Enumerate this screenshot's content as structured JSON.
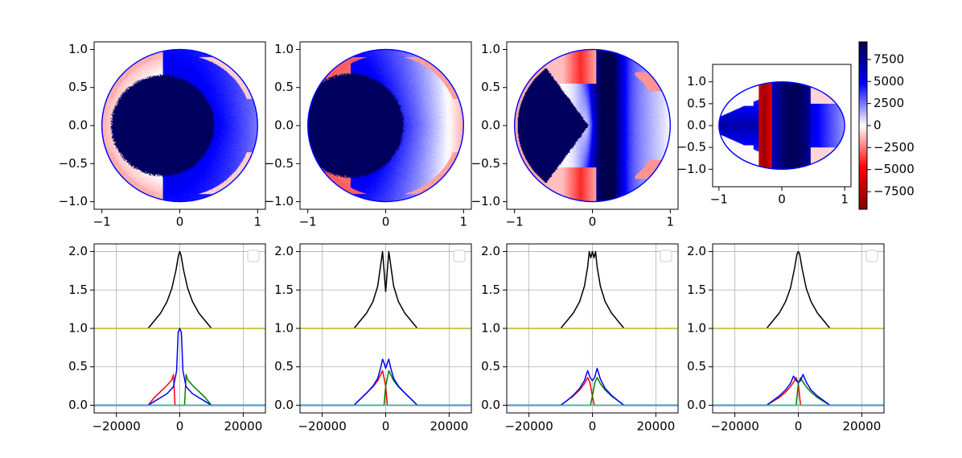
{
  "figure": {
    "colorbar": {
      "cmap": "seismic-reversed",
      "vmin": -9500,
      "vmax": 9500,
      "ticks": [
        7500,
        5000,
        2500,
        0,
        -2500,
        -5000,
        -7500
      ],
      "tick_labels": [
        "7500",
        "5000",
        "2500",
        "0",
        "−2500",
        "−5000",
        "−7500"
      ]
    }
  },
  "chart_data": [
    {
      "type": "heatmap",
      "panel": "disk-1",
      "xticks": [
        -1,
        0,
        1
      ],
      "xtick_labels": [
        "−1",
        "0",
        "1"
      ],
      "yticks": [
        1.0,
        0.5,
        0.0,
        -0.5,
        -1.0
      ],
      "ytick_labels": [
        "1.0",
        "0.5",
        "0.0",
        "−0.5",
        "−1.0"
      ],
      "xlim": [
        -1.1,
        1.1
      ],
      "ylim": [
        -1.1,
        1.1
      ],
      "pattern": "crescent",
      "inner_disk": {
        "cx": -0.22,
        "cy": 0.0,
        "r": 0.66,
        "value": 9000
      },
      "outer_value_range": [
        2500,
        7000
      ],
      "edge_value": -1500
    },
    {
      "type": "heatmap",
      "panel": "disk-2",
      "xticks": [
        -1,
        0,
        1
      ],
      "xtick_labels": [
        "−1",
        "0",
        "1"
      ],
      "yticks": [
        1.0,
        0.5,
        0.0,
        -0.5,
        -1.0
      ],
      "ytick_labels": [
        "1.0",
        "0.5",
        "0.0",
        "−0.5",
        "−1.0"
      ],
      "xlim": [
        -1.1,
        1.1
      ],
      "ylim": [
        -1.1,
        1.1
      ],
      "pattern": "crescent",
      "inner_disk": {
        "cx": -0.45,
        "cy": 0.0,
        "r": 0.68,
        "value": 9000
      },
      "outer_value_range": [
        -1500,
        7000
      ],
      "edge_value": -3000
    },
    {
      "type": "heatmap",
      "panel": "disk-3",
      "xticks": [
        -1,
        0,
        1
      ],
      "xtick_labels": [
        "−1",
        "0",
        "1"
      ],
      "yticks": [
        1.0,
        0.5,
        0.0,
        -0.5,
        -1.0
      ],
      "ytick_labels": [
        "1.0",
        "0.5",
        "0.0",
        "−0.5",
        "−1.0"
      ],
      "xlim": [
        -1.1,
        1.1
      ],
      "ylim": [
        -1.1,
        1.1
      ],
      "pattern": "wedge",
      "wedge_apex": -0.05,
      "band_peak_x": 0.12,
      "edge_value": -4000
    },
    {
      "type": "heatmap",
      "panel": "disk-4",
      "xticks": [
        -1,
        0,
        1
      ],
      "xtick_labels": [
        "−1",
        "0",
        "1"
      ],
      "yticks": [
        1.0,
        0.5,
        0.0,
        -0.5,
        -1.0
      ],
      "ytick_labels": [
        "1.0",
        "0.5",
        "0.0",
        "−0.5",
        "−1.0"
      ],
      "xlim": [
        -1.1,
        1.1
      ],
      "ylim": [
        -1.4,
        1.4
      ],
      "pattern": "bands",
      "red_stripe_x": -0.28,
      "dark_band_x": 0.18
    },
    {
      "type": "line",
      "panel": "profile-1",
      "xlim": [
        -27000,
        27000
      ],
      "ylim": [
        -0.1,
        2.1
      ],
      "xticks": [
        -20000,
        0,
        20000
      ],
      "xtick_labels": [
        "−20000",
        "0",
        "20000"
      ],
      "yticks": [
        0.0,
        0.5,
        1.0,
        1.5,
        2.0
      ],
      "ytick_labels": [
        "0.0",
        "0.5",
        "1.0",
        "1.5",
        "2.0"
      ],
      "grid": true,
      "legend_location": "upper right",
      "series": [
        {
          "color": "#000000",
          "x": [
            -10000,
            -8000,
            -6000,
            -4000,
            -2500,
            -1200,
            -400,
            0,
            400,
            1200,
            2500,
            4000,
            6000,
            8000,
            10000
          ],
          "y": [
            1.0,
            1.1,
            1.2,
            1.35,
            1.52,
            1.76,
            1.95,
            2.0,
            1.95,
            1.76,
            1.52,
            1.35,
            1.2,
            1.1,
            1.0
          ]
        },
        {
          "color": "#b5b520",
          "x": [
            -27000,
            27000
          ],
          "y": [
            1.0,
            1.0
          ]
        },
        {
          "color": "#ff0000",
          "x": [
            -27000,
            -10000,
            -8000,
            -6000,
            -4000,
            -2500,
            -2000,
            -1500,
            27000
          ],
          "y": [
            0,
            0,
            0.1,
            0.18,
            0.26,
            0.33,
            0.4,
            0,
            0
          ]
        },
        {
          "color": "#008000",
          "x": [
            -27000,
            1500,
            2000,
            2500,
            4000,
            6000,
            8000,
            10000,
            27000
          ],
          "y": [
            0,
            0,
            0.4,
            0.33,
            0.26,
            0.18,
            0.1,
            0,
            0
          ]
        },
        {
          "color": "#0000ff",
          "x": [
            -27000,
            -10000,
            -8000,
            -6000,
            -4000,
            -2000,
            -1000,
            -500,
            0,
            500,
            1000,
            2000,
            4000,
            6000,
            8000,
            10000,
            27000
          ],
          "y": [
            0,
            0,
            0.05,
            0.1,
            0.15,
            0.24,
            0.45,
            0.95,
            1.0,
            0.95,
            0.45,
            0.24,
            0.15,
            0.1,
            0.05,
            0,
            0
          ]
        },
        {
          "color": "#17becf",
          "x": [
            -27000,
            27000
          ],
          "y": [
            0,
            0
          ]
        }
      ]
    },
    {
      "type": "line",
      "panel": "profile-2",
      "xlim": [
        -27000,
        27000
      ],
      "ylim": [
        -0.1,
        2.1
      ],
      "xticks": [
        -20000,
        0,
        20000
      ],
      "xtick_labels": [
        "−20000",
        "0",
        "20000"
      ],
      "yticks": [
        0.0,
        0.5,
        1.0,
        1.5,
        2.0
      ],
      "ytick_labels": [
        "0.0",
        "0.5",
        "1.0",
        "1.5",
        "2.0"
      ],
      "grid": true,
      "legend_location": "upper right",
      "series": [
        {
          "color": "#000000",
          "x": [
            -10000,
            -8000,
            -6000,
            -4000,
            -2500,
            -1500,
            -1000,
            -500,
            0,
            500,
            1000,
            1500,
            2500,
            4000,
            6000,
            8000,
            10000
          ],
          "y": [
            1.0,
            1.1,
            1.2,
            1.35,
            1.55,
            1.85,
            2.0,
            1.75,
            1.48,
            1.75,
            2.0,
            1.85,
            1.55,
            1.35,
            1.2,
            1.1,
            1.0
          ]
        },
        {
          "color": "#b5b520",
          "x": [
            -27000,
            27000
          ],
          "y": [
            1.0,
            1.0
          ]
        },
        {
          "color": "#ff0000",
          "x": [
            -27000,
            -10000,
            -8000,
            -6000,
            -4000,
            -2500,
            -1000,
            0,
            500,
            1000,
            27000
          ],
          "y": [
            0,
            0,
            0.08,
            0.16,
            0.24,
            0.32,
            0.45,
            0.25,
            0,
            0,
            0
          ]
        },
        {
          "color": "#008000",
          "x": [
            -27000,
            -1000,
            -500,
            0,
            1000,
            2500,
            4000,
            6000,
            8000,
            10000,
            27000
          ],
          "y": [
            0,
            0,
            0,
            0.25,
            0.45,
            0.32,
            0.24,
            0.16,
            0.08,
            0,
            0
          ]
        },
        {
          "color": "#0000ff",
          "x": [
            -27000,
            -10000,
            -8000,
            -6000,
            -4000,
            -2500,
            -1500,
            -1000,
            -500,
            0,
            500,
            1000,
            1500,
            2500,
            4000,
            6000,
            8000,
            10000,
            27000
          ],
          "y": [
            0,
            0,
            0.08,
            0.16,
            0.25,
            0.35,
            0.5,
            0.6,
            0.55,
            0.48,
            0.55,
            0.6,
            0.5,
            0.35,
            0.25,
            0.16,
            0.08,
            0,
            0
          ]
        },
        {
          "color": "#17becf",
          "x": [
            -27000,
            27000
          ],
          "y": [
            0,
            0
          ]
        }
      ]
    },
    {
      "type": "line",
      "panel": "profile-3",
      "xlim": [
        -27000,
        27000
      ],
      "ylim": [
        -0.1,
        2.1
      ],
      "xticks": [
        -20000,
        0,
        20000
      ],
      "xtick_labels": [
        "−20000",
        "0",
        "20000"
      ],
      "yticks": [
        0.0,
        0.5,
        1.0,
        1.5,
        2.0
      ],
      "ytick_labels": [
        "0.0",
        "0.5",
        "1.0",
        "1.5",
        "2.0"
      ],
      "grid": true,
      "legend_location": "upper right",
      "series": [
        {
          "color": "#000000",
          "x": [
            -10000,
            -8000,
            -6000,
            -4000,
            -2500,
            -1500,
            -1000,
            -500,
            0,
            500,
            1000,
            1500,
            2500,
            4000,
            6000,
            8000,
            10000
          ],
          "y": [
            1.0,
            1.1,
            1.2,
            1.35,
            1.55,
            1.8,
            2.0,
            1.92,
            2.0,
            1.92,
            2.0,
            1.8,
            1.55,
            1.35,
            1.2,
            1.1,
            1.0
          ]
        },
        {
          "color": "#b5b520",
          "x": [
            -27000,
            27000
          ],
          "y": [
            1.0,
            1.0
          ]
        },
        {
          "color": "#ff0000",
          "x": [
            -27000,
            -10000,
            -8000,
            -6000,
            -4000,
            -2500,
            -1500,
            -800,
            0,
            600,
            27000
          ],
          "y": [
            0,
            0,
            0.06,
            0.12,
            0.2,
            0.28,
            0.36,
            0.3,
            0.12,
            0,
            0
          ]
        },
        {
          "color": "#008000",
          "x": [
            -27000,
            -600,
            0,
            800,
            1500,
            2500,
            4000,
            6000,
            8000,
            10000,
            27000
          ],
          "y": [
            0,
            0,
            0.12,
            0.3,
            0.36,
            0.28,
            0.2,
            0.12,
            0.06,
            0,
            0
          ]
        },
        {
          "color": "#0000ff",
          "x": [
            -27000,
            -10000,
            -8000,
            -6000,
            -4000,
            -2500,
            -1500,
            -700,
            0,
            700,
            1500,
            2500,
            4000,
            6000,
            8000,
            10000,
            27000
          ],
          "y": [
            0,
            0,
            0.06,
            0.13,
            0.22,
            0.32,
            0.45,
            0.36,
            0.32,
            0.36,
            0.48,
            0.34,
            0.22,
            0.13,
            0.06,
            0,
            0
          ]
        },
        {
          "color": "#17becf",
          "x": [
            -27000,
            27000
          ],
          "y": [
            0,
            0
          ]
        }
      ]
    },
    {
      "type": "line",
      "panel": "profile-4",
      "xlim": [
        -27000,
        27000
      ],
      "ylim": [
        -0.1,
        2.1
      ],
      "xticks": [
        -20000,
        0,
        20000
      ],
      "xtick_labels": [
        "−20000",
        "0",
        "20000"
      ],
      "yticks": [
        0.0,
        0.5,
        1.0,
        1.5,
        2.0
      ],
      "ytick_labels": [
        "0.0",
        "0.5",
        "1.0",
        "1.5",
        "2.0"
      ],
      "grid": true,
      "legend_location": "upper right",
      "series": [
        {
          "color": "#000000",
          "x": [
            -10000,
            -8000,
            -6000,
            -4000,
            -2500,
            -1200,
            -400,
            0,
            400,
            1200,
            2500,
            4000,
            6000,
            8000,
            10000
          ],
          "y": [
            1.0,
            1.1,
            1.2,
            1.35,
            1.52,
            1.78,
            1.97,
            2.0,
            1.97,
            1.78,
            1.52,
            1.35,
            1.2,
            1.1,
            1.0
          ]
        },
        {
          "color": "#b5b520",
          "x": [
            -27000,
            27000
          ],
          "y": [
            1.0,
            1.0
          ]
        },
        {
          "color": "#ff0000",
          "x": [
            -27000,
            -10000,
            -8000,
            -6000,
            -4000,
            -2500,
            -1500,
            -700,
            0,
            700,
            27000
          ],
          "y": [
            0,
            0,
            0.05,
            0.1,
            0.17,
            0.24,
            0.3,
            0.36,
            0.28,
            0,
            0
          ]
        },
        {
          "color": "#008000",
          "x": [
            -27000,
            -700,
            0,
            700,
            1500,
            2500,
            4000,
            6000,
            8000,
            10000,
            27000
          ],
          "y": [
            0,
            0,
            0.28,
            0.36,
            0.3,
            0.24,
            0.17,
            0.1,
            0.05,
            0,
            0
          ]
        },
        {
          "color": "#0000ff",
          "x": [
            -27000,
            -10000,
            -8000,
            -6000,
            -4000,
            -2500,
            -1500,
            -700,
            0,
            700,
            1500,
            2500,
            4000,
            6000,
            8000,
            10000,
            27000
          ],
          "y": [
            0,
            0,
            0.06,
            0.12,
            0.2,
            0.28,
            0.38,
            0.32,
            0.3,
            0.32,
            0.4,
            0.3,
            0.2,
            0.12,
            0.06,
            0,
            0
          ]
        },
        {
          "color": "#17becf",
          "x": [
            -27000,
            27000
          ],
          "y": [
            0,
            0
          ]
        }
      ]
    }
  ]
}
